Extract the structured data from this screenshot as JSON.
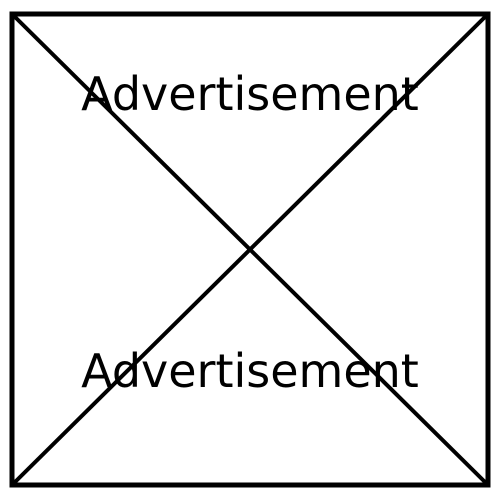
{
  "placeholder": {
    "top_label": "Advertisement",
    "bottom_label": "Advertisement",
    "stroke_color": "#000000",
    "background_color": "#ffffff"
  }
}
